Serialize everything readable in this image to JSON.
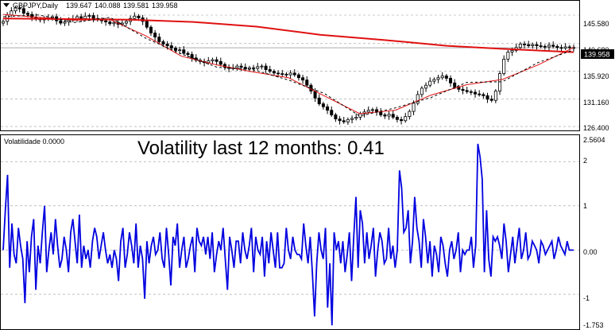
{
  "main": {
    "symbol_line": "GBPJPY,Daily",
    "ohlc": [
      "139.647",
      "140.088",
      "139.581",
      "139.958"
    ],
    "current_price": "139.958",
    "price_ticks": [
      "145.580",
      "140.680",
      "135.920",
      "131.160",
      "126.400"
    ]
  },
  "sub": {
    "indicator_label": "Volatilidade 0.0000",
    "headline": "Volatility last 12 months: 0.41",
    "value_ticks": [
      "2.5604",
      "2",
      "1",
      "0.00",
      "-1",
      "-1.753"
    ]
  },
  "colors": {
    "candle": "#000000",
    "ma_long": "#e01010",
    "ma_short": "#e01010",
    "volatility_line": "#0000e0",
    "grid": "#9a9a9a",
    "price_line_label_bg": "#000000"
  },
  "chart_data": [
    {
      "type": "candlestick",
      "title": "GBPJPY,Daily",
      "yrange": [
        126.4,
        145.58
      ],
      "ticks": [
        145.58,
        140.68,
        135.92,
        131.16,
        126.4
      ],
      "last_close": 139.958,
      "closes": [
        144.5,
        145.6,
        146.3,
        146.8,
        146.7,
        145.9,
        145.7,
        145.2,
        144.9,
        144.8,
        144.9,
        145.1,
        145.3,
        144.6,
        144.2,
        144.4,
        144.7,
        144.9,
        145.3,
        145.0,
        145.4,
        145.5,
        145.0,
        144.8,
        144.6,
        144.4,
        144.1,
        144.3,
        144.0,
        144.2,
        144.5,
        145.0,
        145.4,
        145.1,
        144.5,
        143.5,
        142.5,
        141.8,
        141.0,
        140.6,
        140.3,
        139.9,
        139.5,
        139.6,
        139.0,
        138.8,
        138.2,
        137.8,
        137.6,
        137.4,
        137.7,
        137.9,
        137.6,
        137.1,
        136.6,
        136.4,
        136.5,
        136.8,
        136.6,
        136.3,
        136.5,
        136.4,
        136.7,
        136.8,
        136.2,
        135.9,
        135.6,
        135.5,
        135.4,
        135.3,
        135.6,
        135.3,
        134.8,
        134.4,
        133.5,
        132.5,
        131.3,
        130.3,
        129.8,
        129.2,
        128.4,
        127.7,
        127.4,
        127.2,
        127.6,
        127.8,
        128.0,
        128.6,
        128.9,
        129.2,
        129.3,
        128.9,
        128.4,
        128.2,
        128.5,
        128.0,
        127.6,
        127.4,
        128.1,
        129.0,
        130.4,
        131.9,
        133.0,
        133.5,
        134.2,
        134.5,
        134.8,
        135.1,
        134.7,
        133.9,
        133.2,
        132.8,
        132.6,
        132.4,
        132.3,
        132.0,
        131.9,
        131.7,
        131.1,
        130.9,
        132.5,
        135.5,
        138.0,
        139.2,
        139.5,
        140.0,
        140.6,
        140.5,
        140.3,
        140.5,
        140.3,
        140.2,
        140.1,
        140.4,
        140.2,
        140.0,
        139.9,
        140.1,
        140.0,
        139.958
      ],
      "series": [
        {
          "name": "",
          "kind": "moving-average-long",
          "values": [
            145.0,
            144.9,
            144.8,
            144.4,
            143.6,
            142.2,
            141.3,
            140.3,
            139.7,
            139.2
          ]
        },
        {
          "name": "",
          "kind": "moving-average-short",
          "values": [
            145.7,
            145.2,
            144.7,
            144.8,
            142.0,
            138.5,
            137.0,
            135.8,
            134.8,
            131.7,
            128.6,
            129.2,
            131.8,
            133.6,
            134.5,
            137.0,
            140.0
          ]
        }
      ]
    },
    {
      "type": "line",
      "title": "Volatilidade",
      "yrange": [
        -1.753,
        2.5604
      ],
      "ticks": [
        2,
        1,
        0,
        -1
      ],
      "series": [
        {
          "name": "",
          "values": [
            0.0,
            0.9,
            1.7,
            -0.4,
            0.6,
            -0.1,
            -0.3,
            0.5,
            0.1,
            -0.2,
            -1.2,
            0.2,
            -0.5,
            0.3,
            0.7,
            -0.9,
            0.1,
            -0.3,
            0.4,
            1.0,
            -0.5,
            0.0,
            0.4,
            -0.1,
            0.7,
            0.1,
            -0.4,
            -0.2,
            0.3,
            0.0,
            -0.5,
            0.4,
            0.7,
            0.2,
            -0.3,
            0.8,
            -0.4,
            0.1,
            -0.2,
            0.0,
            -0.4,
            0.2,
            0.5,
            0.3,
            -0.2,
            0.1,
            0.4,
            0.0,
            -0.3,
            -0.1,
            -0.4,
            0.0,
            -0.2,
            -0.7,
            0.2,
            0.5,
            -0.4,
            -0.1,
            0.4,
            0.1,
            -0.3,
            0.6,
            -0.4,
            0.1,
            -0.2,
            -1.1,
            0.2,
            -0.3,
            0.1,
            0.3,
            -0.1,
            0.0,
            0.4,
            -0.2,
            -0.4,
            0.5,
            -0.1,
            -0.8,
            0.3,
            0.1,
            0.6,
            -0.4,
            0.0,
            0.3,
            -0.4,
            -0.2,
            0.1,
            0.3,
            -0.5,
            0.5,
            0.2,
            0.1,
            0.3,
            -0.1,
            0.3,
            -0.2,
            0.4,
            -0.5,
            -0.1,
            0.2,
            0.0,
            0.5,
            -0.2,
            -0.9,
            0.3,
            0.0,
            -0.4,
            0.2,
            0.2,
            -0.3,
            0.4,
            0.0,
            -0.2,
            0.1,
            0.5,
            -0.5,
            0.3,
            0.0,
            -0.1,
            0.3,
            -0.6,
            0.2,
            -0.3,
            0.4,
            0.0,
            -0.4,
            0.4,
            -0.4,
            -0.4,
            -0.3,
            0.5,
            0.0,
            -0.2,
            0.3,
            0.0,
            -0.1,
            -0.1,
            -0.2,
            0.6,
            0.1,
            -0.3,
            0.3,
            -0.5,
            -1.5,
            -0.3,
            0.4,
            0.0,
            -0.2,
            0.5,
            -1.3,
            -0.3,
            -1.7,
            0.4,
            0.0,
            0.2,
            -0.3,
            0.2,
            -0.5,
            -0.1,
            0.4,
            -0.7,
            0.3,
            1.2,
            -0.4,
            0.9,
            0.6,
            -0.3,
            0.4,
            -0.2,
            0.1,
            0.5,
            -0.6,
            0.0,
            0.4,
            0.2,
            -0.3,
            -0.2,
            0.5,
            -0.2,
            0.1,
            -0.4,
            0.0,
            1.8,
            1.4,
            0.4,
            0.5,
            0.9,
            -0.3,
            0.2,
            1.2,
            0.5,
            0.2,
            -0.4,
            0.7,
            0.3,
            -0.3,
            0.2,
            -0.6,
            0.1,
            -0.1,
            -0.5,
            0.3,
            0.1,
            -0.3,
            -0.6,
            0.0,
            0.2,
            -0.2,
            0.0,
            0.4,
            -0.5,
            0.0,
            -0.1,
            0.0,
            0.0,
            0.3,
            -0.4,
            0.1,
            2.4,
            2.1,
            1.6,
            -0.5,
            0.9,
            -0.2,
            -0.6,
            0.3,
            0.2,
            0.3,
            0.1,
            -0.2,
            0.6,
            0.2,
            -0.5,
            -0.1,
            0.3,
            -0.3,
            0.1,
            0.5,
            -0.2,
            0.0,
            0.4,
            -0.2,
            -0.1,
            0.2,
            0.1,
            0.0,
            -0.3,
            0.2,
            0.1,
            -0.1,
            0.0,
            0.1,
            0.2,
            -0.2,
            0.0,
            0.3,
            0.1,
            0.0,
            -0.1,
            0.2,
            0.0,
            0.0,
            0.0
          ]
        }
      ]
    }
  ]
}
